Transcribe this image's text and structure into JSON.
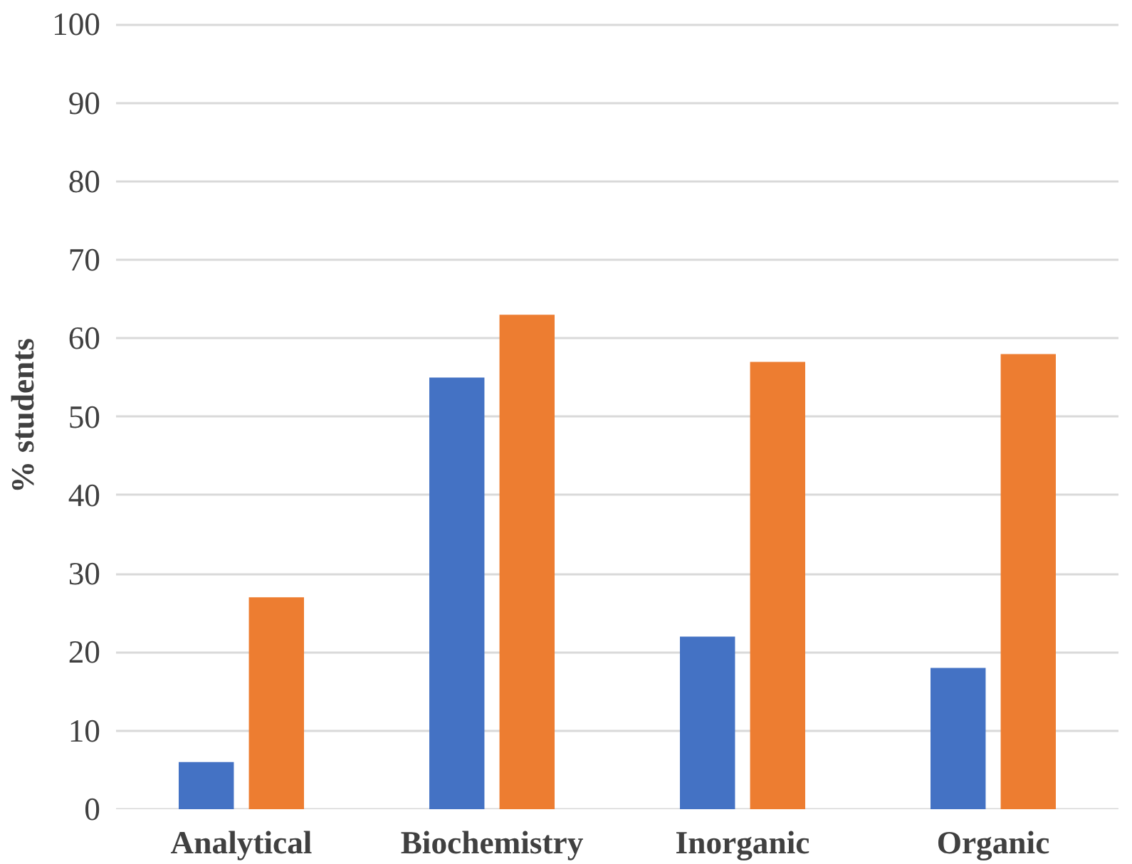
{
  "chart_data": {
    "type": "bar",
    "ylabel": "% students",
    "categories": [
      "Analytical",
      "Biochemistry",
      "Inorganic",
      "Organic"
    ],
    "series": [
      {
        "color": "#4472c4",
        "values": [
          6,
          55,
          22,
          18
        ]
      },
      {
        "color": "#ed7d31",
        "values": [
          27,
          63,
          57,
          58
        ]
      }
    ],
    "ylim": [
      0,
      100
    ],
    "yticks": [
      0,
      10,
      20,
      30,
      40,
      50,
      60,
      70,
      80,
      90,
      100
    ],
    "grid": "y"
  }
}
